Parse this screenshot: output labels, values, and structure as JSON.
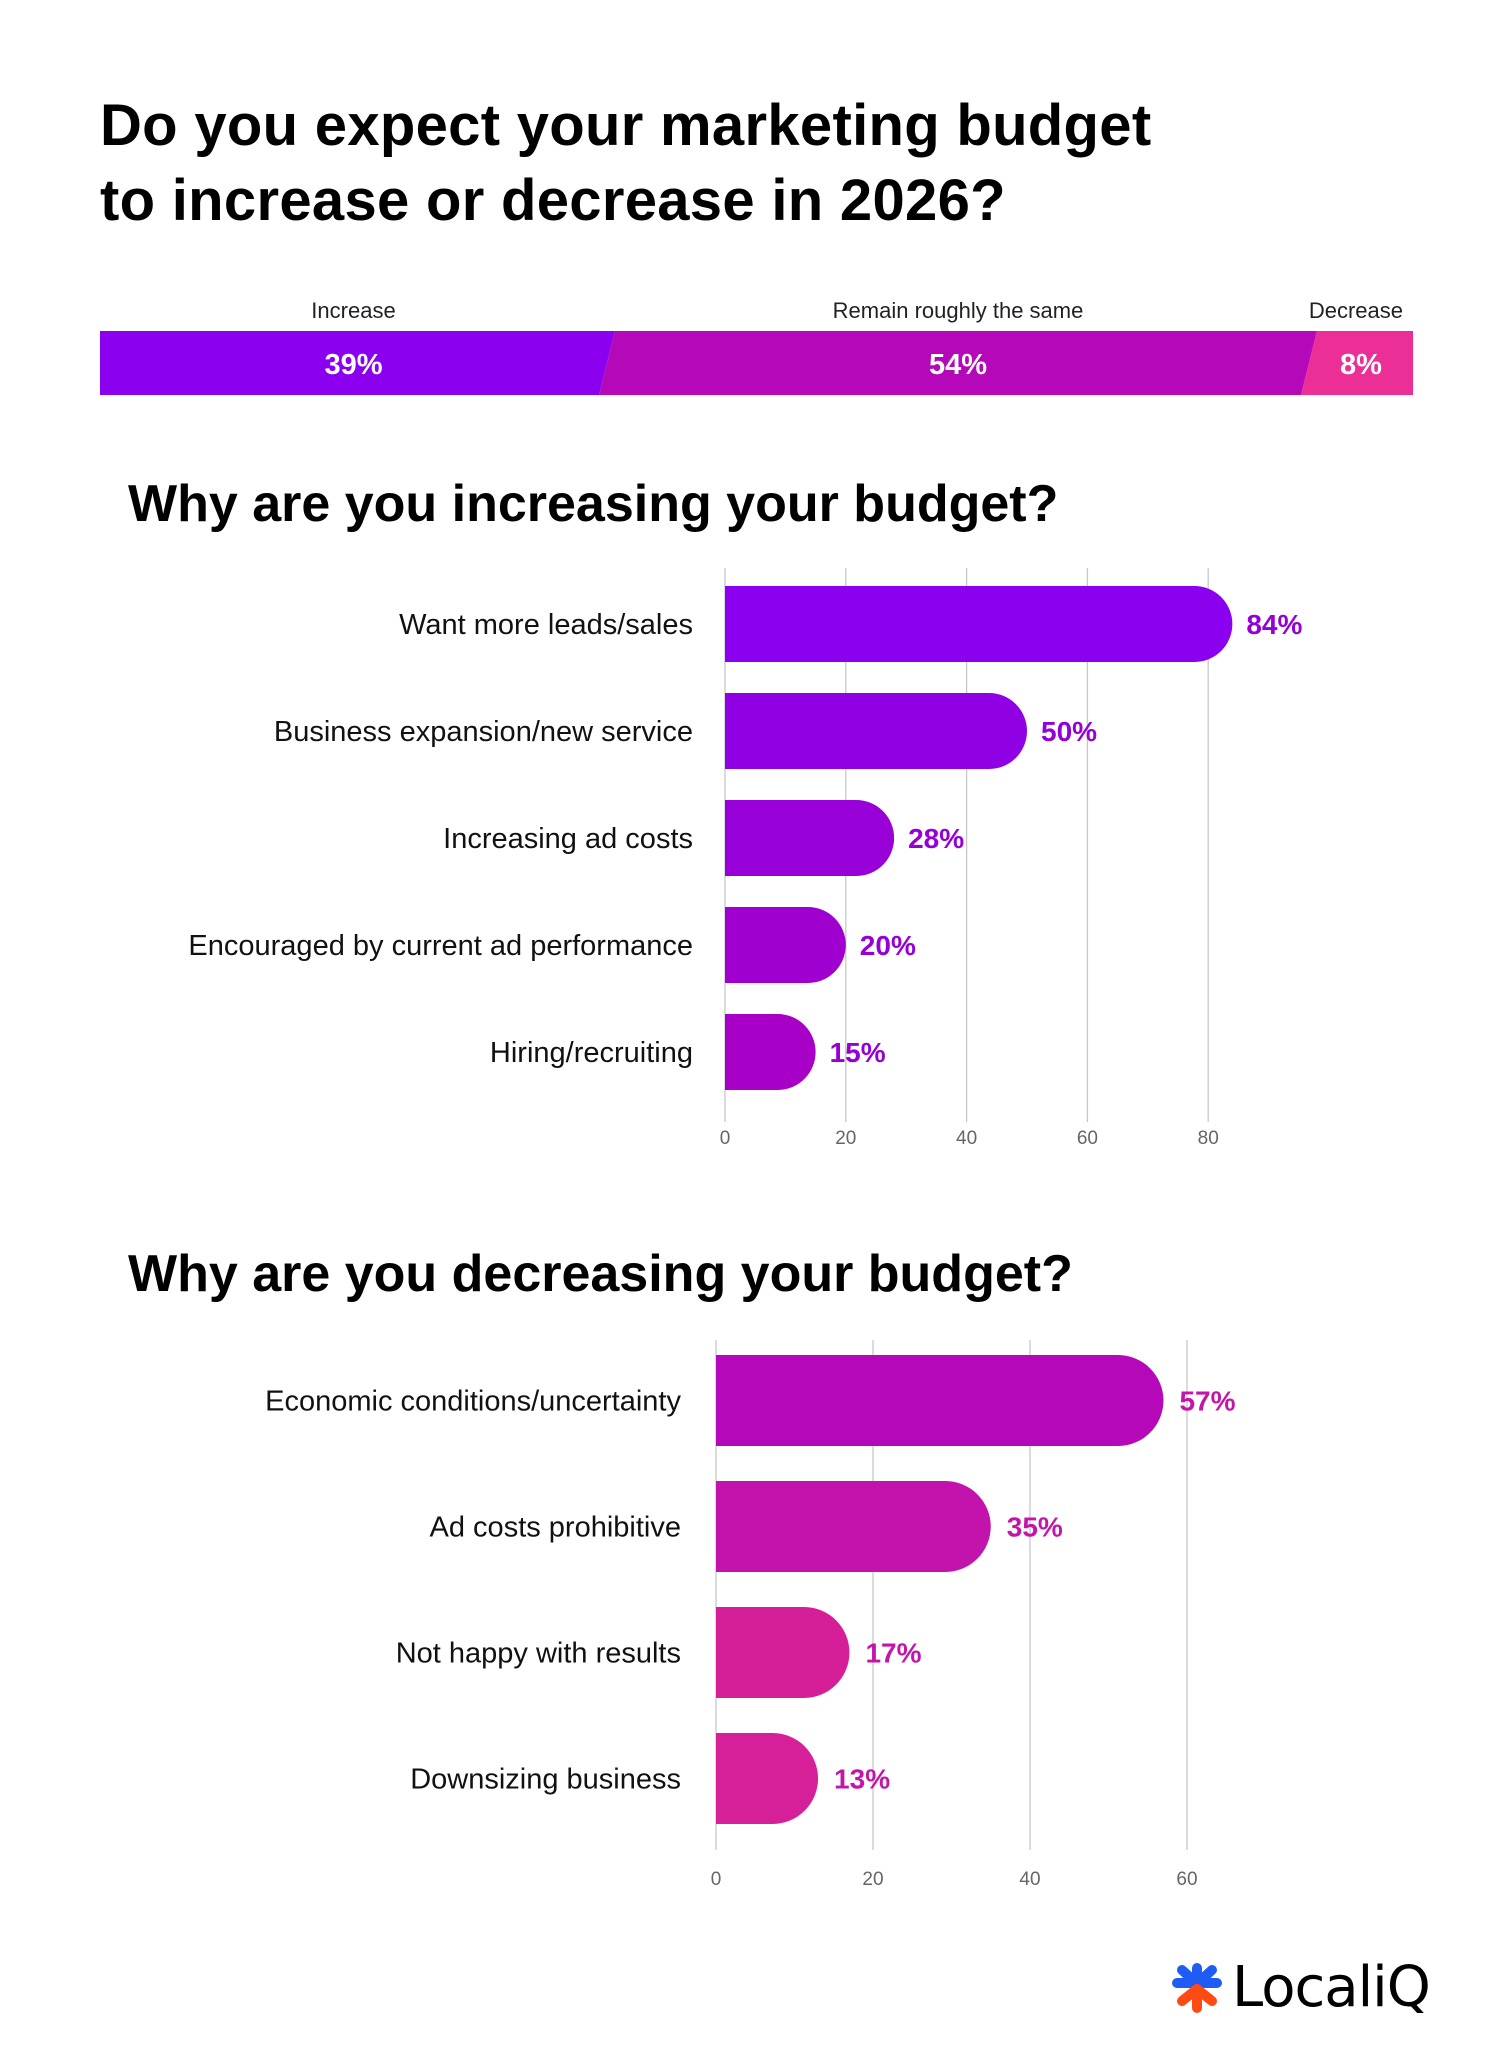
{
  "title": "Do you expect your marketing budget to increase or decrease in 2026?",
  "title_lines": [
    "Do you expect your marketing budget",
    "to increase or decrease in 2026?"
  ],
  "chart_data": [
    {
      "type": "bar",
      "orientation": "horizontal-stacked",
      "categories": [
        "Increase",
        "Remain roughly the same",
        "Decrease"
      ],
      "values": [
        39,
        54,
        8
      ],
      "labels": [
        "39%",
        "54%",
        "8%"
      ],
      "colors": [
        "#8a00ef",
        "#b508b8",
        "#ec2f97"
      ]
    },
    {
      "type": "bar",
      "orientation": "horizontal",
      "title": "Why are you increasing your budget?",
      "categories": [
        "Want more leads/sales",
        "Business expansion/new service",
        "Increasing ad costs",
        "Encouraged by current ad performance",
        "Hiring/recruiting"
      ],
      "values": [
        84,
        50,
        28,
        20,
        15
      ],
      "labels": [
        "84%",
        "50%",
        "28%",
        "20%",
        "15%"
      ],
      "xlim": [
        0,
        90
      ],
      "xticks": [
        0,
        20,
        40,
        60,
        80
      ],
      "grid": true,
      "colors": [
        "#8b00ef",
        "#8f00e4",
        "#9800d8",
        "#9f00cf",
        "#a800c6"
      ],
      "label_color": "#9500d8"
    },
    {
      "type": "bar",
      "orientation": "horizontal",
      "title": "Why are you decreasing your budget?",
      "categories": [
        "Economic conditions/uncertainty",
        "Ad costs prohibitive",
        "Not happy with results",
        "Downsizing business"
      ],
      "values": [
        57,
        35,
        17,
        13
      ],
      "labels": [
        "57%",
        "35%",
        "17%",
        "13%"
      ],
      "xlim": [
        0,
        60
      ],
      "xticks": [
        0,
        20,
        40,
        60
      ],
      "grid": true,
      "colors": [
        "#b508b8",
        "#c213ad",
        "#d41f98",
        "#d6209a"
      ],
      "label_color": "#c415ab"
    }
  ],
  "logo": {
    "text": "LocaliQ",
    "icon": "asterisk-logo-icon",
    "colors": [
      "#1f5cf5",
      "#ff4a14"
    ]
  }
}
